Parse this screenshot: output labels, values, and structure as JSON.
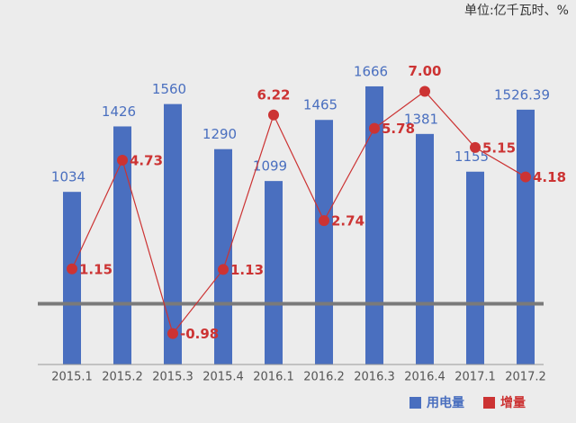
{
  "chart_data": {
    "type": "bar_line",
    "unit_note": "单位:亿千瓦时、%",
    "categories": [
      "2015.1",
      "2015.2",
      "2015.3",
      "2015.4",
      "2016.1",
      "2016.2",
      "2016.3",
      "2016.4",
      "2017.1",
      "2017.2"
    ],
    "series": [
      {
        "name": "用电量",
        "type": "bar",
        "color": "#4a6fbf",
        "values": [
          1034,
          1426,
          1560,
          1290,
          1099,
          1465,
          1666,
          1381,
          1155,
          1526.39
        ]
      },
      {
        "name": "增量",
        "type": "line",
        "axis": "y2",
        "color": "#cc3333",
        "values": [
          1.15,
          4.73,
          -0.98,
          1.13,
          6.22,
          2.74,
          5.78,
          7.0,
          5.15,
          4.18
        ],
        "value_labels": [
          "1.15",
          "4.73",
          "-0.98",
          "1.13",
          "6.22",
          "2.74",
          "5.78",
          "7.00",
          "5.15",
          "4.18"
        ]
      }
    ],
    "ylim": [
      0,
      2000
    ],
    "y2lim": [
      -2,
      9
    ],
    "legend": "bottom-right"
  }
}
